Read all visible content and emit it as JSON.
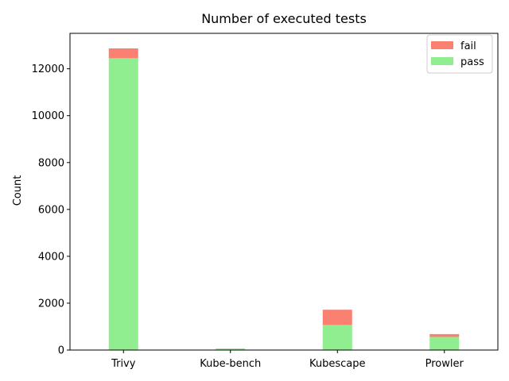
{
  "chart_data": {
    "type": "bar",
    "stacked": true,
    "title": "Number of executed tests",
    "xlabel": "",
    "ylabel": "Count",
    "categories": [
      "Trivy",
      "Kube-bench",
      "Kubescape",
      "Prowler"
    ],
    "series": [
      {
        "name": "pass",
        "color": "#90ee90",
        "values": [
          12450,
          40,
          1070,
          560
        ]
      },
      {
        "name": "fail",
        "color": "#fa8072",
        "values": [
          420,
          20,
          650,
          120
        ]
      }
    ],
    "ylim": [
      0,
      13512
    ],
    "yticks": [
      "0",
      "2000",
      "4000",
      "6000",
      "8000",
      "10000",
      "12000"
    ],
    "legend_position": "top-right",
    "legend_order": [
      "fail",
      "pass"
    ],
    "grid": false
  }
}
